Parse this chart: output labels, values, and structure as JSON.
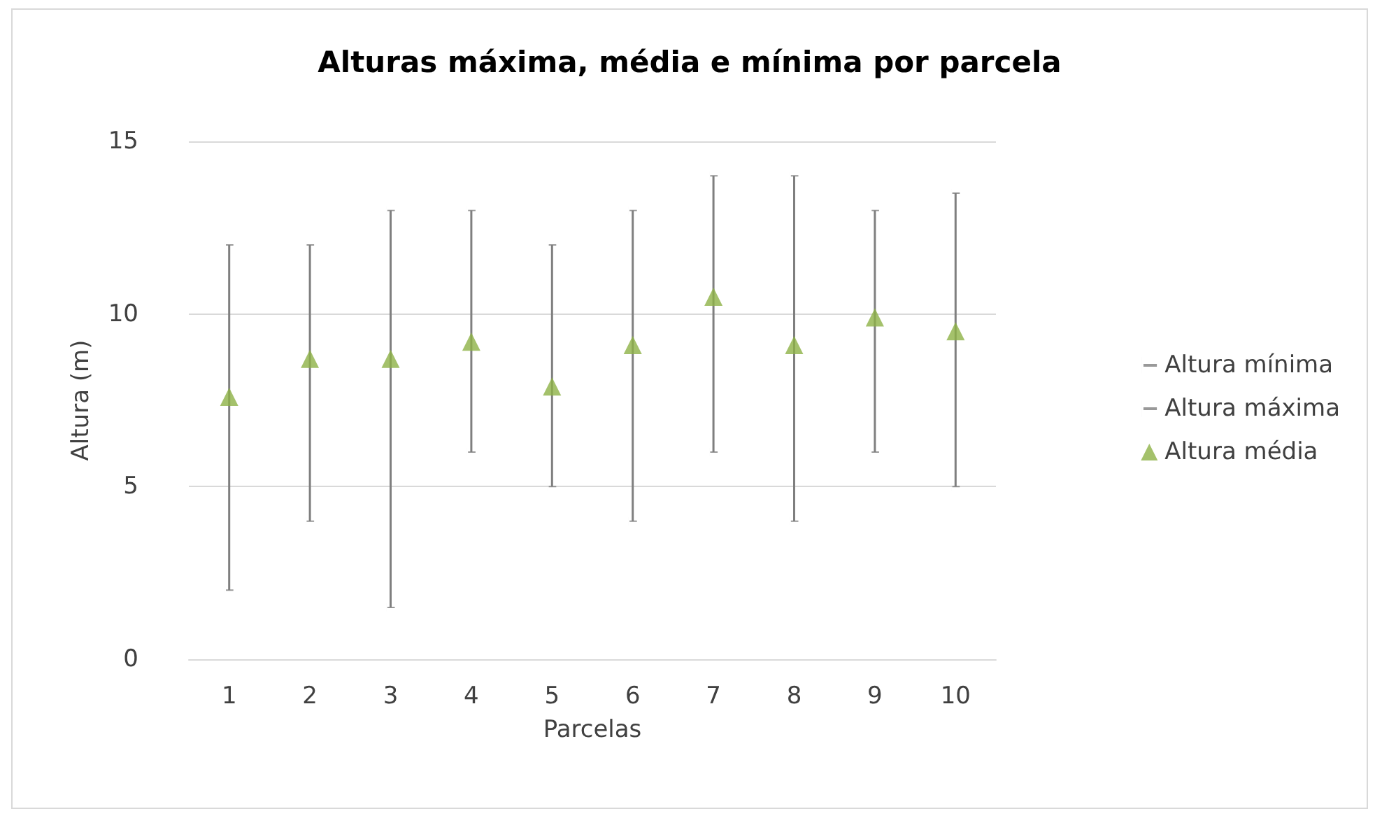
{
  "chart_data": {
    "type": "scatter",
    "title": "Alturas máxima, média e mínima por parcela",
    "xlabel": "Parcelas",
    "ylabel": "Altura (m)",
    "categories": [
      "1",
      "2",
      "3",
      "4",
      "5",
      "6",
      "7",
      "8",
      "9",
      "10"
    ],
    "series": [
      {
        "name": "Altura mínima",
        "color": "#7f7f7f",
        "values": [
          2,
          4,
          1.5,
          6,
          5,
          4,
          6,
          4,
          6,
          5
        ]
      },
      {
        "name": "Altura máxima",
        "color": "#7f7f7f",
        "values": [
          12,
          12,
          13,
          13,
          12,
          13,
          14,
          14,
          13,
          13.5
        ]
      },
      {
        "name": "Altura média",
        "color": "#8db146",
        "marker": "triangle",
        "values": [
          7.6,
          8.7,
          8.7,
          9.2,
          7.9,
          9.1,
          10.5,
          9.1,
          9.9,
          9.5
        ]
      }
    ],
    "ylim": [
      0,
      15
    ],
    "yticks": [
      0,
      5,
      10,
      15
    ],
    "grid": "y",
    "legend": "right"
  }
}
